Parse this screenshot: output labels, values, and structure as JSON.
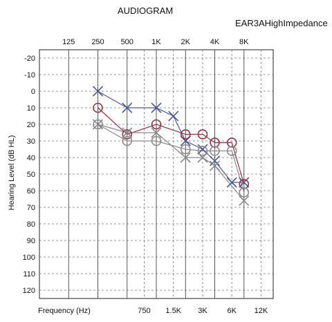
{
  "chart_data": {
    "type": "scatter",
    "title": "AUDIOGRAM",
    "subtitle": "EAR3AHighImpedance",
    "xlabel": "Frequency (Hz)",
    "ylabel": "Hearing Level (dB HL)",
    "x_scale": "log",
    "x_ticks_top": [
      "125",
      "250",
      "500",
      "1K",
      "2K",
      "4K",
      "8K"
    ],
    "x_ticks_top_hz": [
      125,
      250,
      500,
      1000,
      2000,
      4000,
      8000
    ],
    "x_ticks_bottom": [
      "750",
      "1.5K",
      "3K",
      "6K",
      "12K"
    ],
    "x_ticks_bottom_hz": [
      750,
      1500,
      3000,
      6000,
      12000
    ],
    "ylim": [
      -25,
      125
    ],
    "y_ticks": [
      -20,
      -10,
      0,
      10,
      20,
      30,
      40,
      50,
      60,
      70,
      80,
      90,
      100,
      110,
      120
    ],
    "grid": true,
    "series": [
      {
        "marker": "x",
        "color": "#4a5a9a",
        "points": [
          [
            250,
            0
          ],
          [
            500,
            10
          ],
          [
            1000,
            10
          ],
          [
            1500,
            15
          ],
          [
            2000,
            30
          ],
          [
            3000,
            35
          ],
          [
            4000,
            42
          ],
          [
            6000,
            55
          ],
          [
            8000,
            55
          ]
        ]
      },
      {
        "marker": "o",
        "color": "#9a3040",
        "points": [
          [
            250,
            10
          ],
          [
            500,
            26
          ],
          [
            1000,
            20
          ],
          [
            2000,
            26
          ],
          [
            3000,
            26
          ],
          [
            4000,
            31
          ],
          [
            6000,
            31
          ],
          [
            8000,
            56
          ]
        ]
      },
      {
        "marker": "o",
        "color": "#8a8a8a",
        "points": [
          [
            250,
            20
          ],
          [
            500,
            30
          ],
          [
            1000,
            30
          ],
          [
            2000,
            35
          ],
          [
            3000,
            36
          ],
          [
            4000,
            36
          ],
          [
            6000,
            36
          ],
          [
            8000,
            61
          ]
        ]
      },
      {
        "marker": "x",
        "color": "#8a8a8a",
        "points": [
          [
            250,
            20
          ],
          [
            500,
            25
          ],
          [
            1000,
            25
          ],
          [
            2000,
            40
          ],
          [
            3000,
            40
          ],
          [
            4000,
            45
          ],
          [
            8000,
            66
          ]
        ]
      }
    ]
  }
}
